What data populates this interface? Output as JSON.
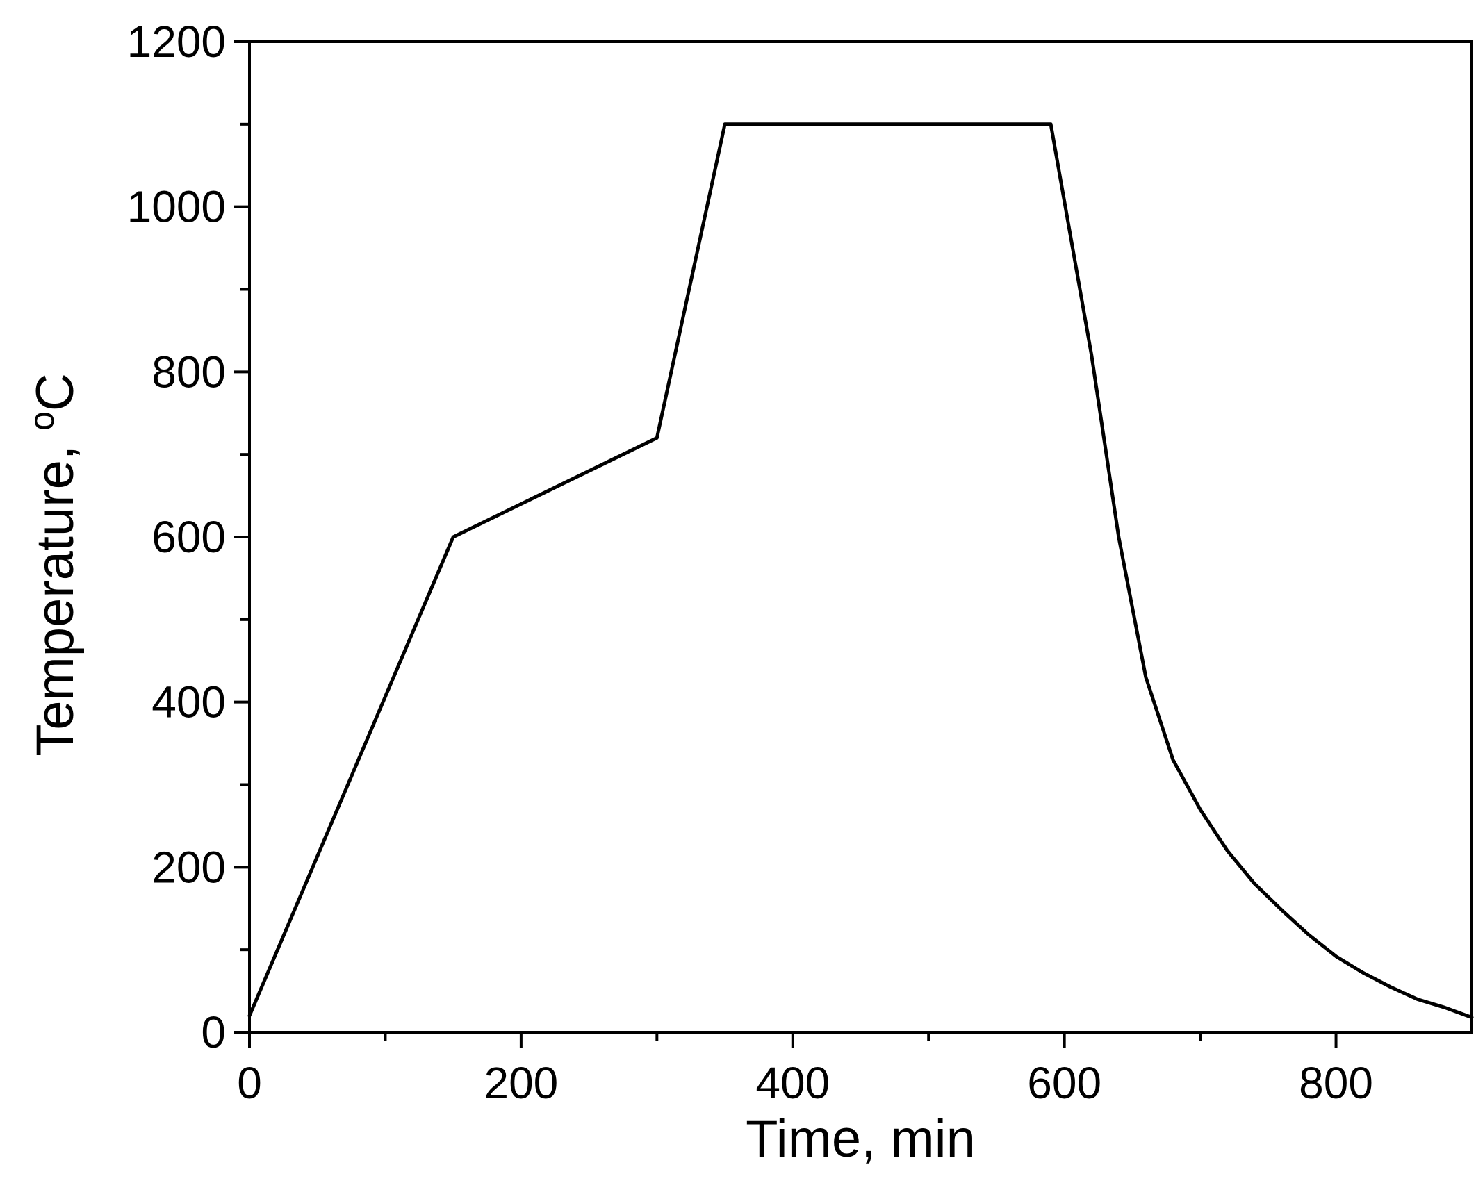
{
  "chart_data": {
    "type": "line",
    "title": "",
    "xlabel": "Time, min",
    "ylabel": "Temperature, ",
    "ylabel_sup": "o",
    "ylabel_unit": "C",
    "xlim": [
      0,
      900
    ],
    "ylim": [
      0,
      1200
    ],
    "x_ticks": [
      0,
      200,
      400,
      600,
      800
    ],
    "x_tick_labels": [
      "0",
      "200",
      "400",
      "600",
      "800"
    ],
    "x_minor_ticks": [
      100,
      300,
      500,
      700
    ],
    "y_ticks": [
      0,
      200,
      400,
      600,
      800,
      1000,
      1200
    ],
    "y_tick_labels": [
      "0",
      "200",
      "400",
      "600",
      "800",
      "1000",
      "1200"
    ],
    "y_minor_ticks": [
      100,
      300,
      500,
      700,
      900,
      1100
    ],
    "grid": false,
    "legend": "none",
    "series": [
      {
        "color": "#000000",
        "x": [
          0,
          150,
          300,
          350,
          590,
          620,
          640,
          660,
          680,
          700,
          720,
          740,
          760,
          780,
          800,
          820,
          840,
          860,
          880,
          900
        ],
        "y": [
          20,
          600,
          720,
          1100,
          1100,
          820,
          600,
          430,
          330,
          270,
          220,
          180,
          148,
          118,
          92,
          72,
          55,
          40,
          30,
          18
        ]
      }
    ]
  }
}
